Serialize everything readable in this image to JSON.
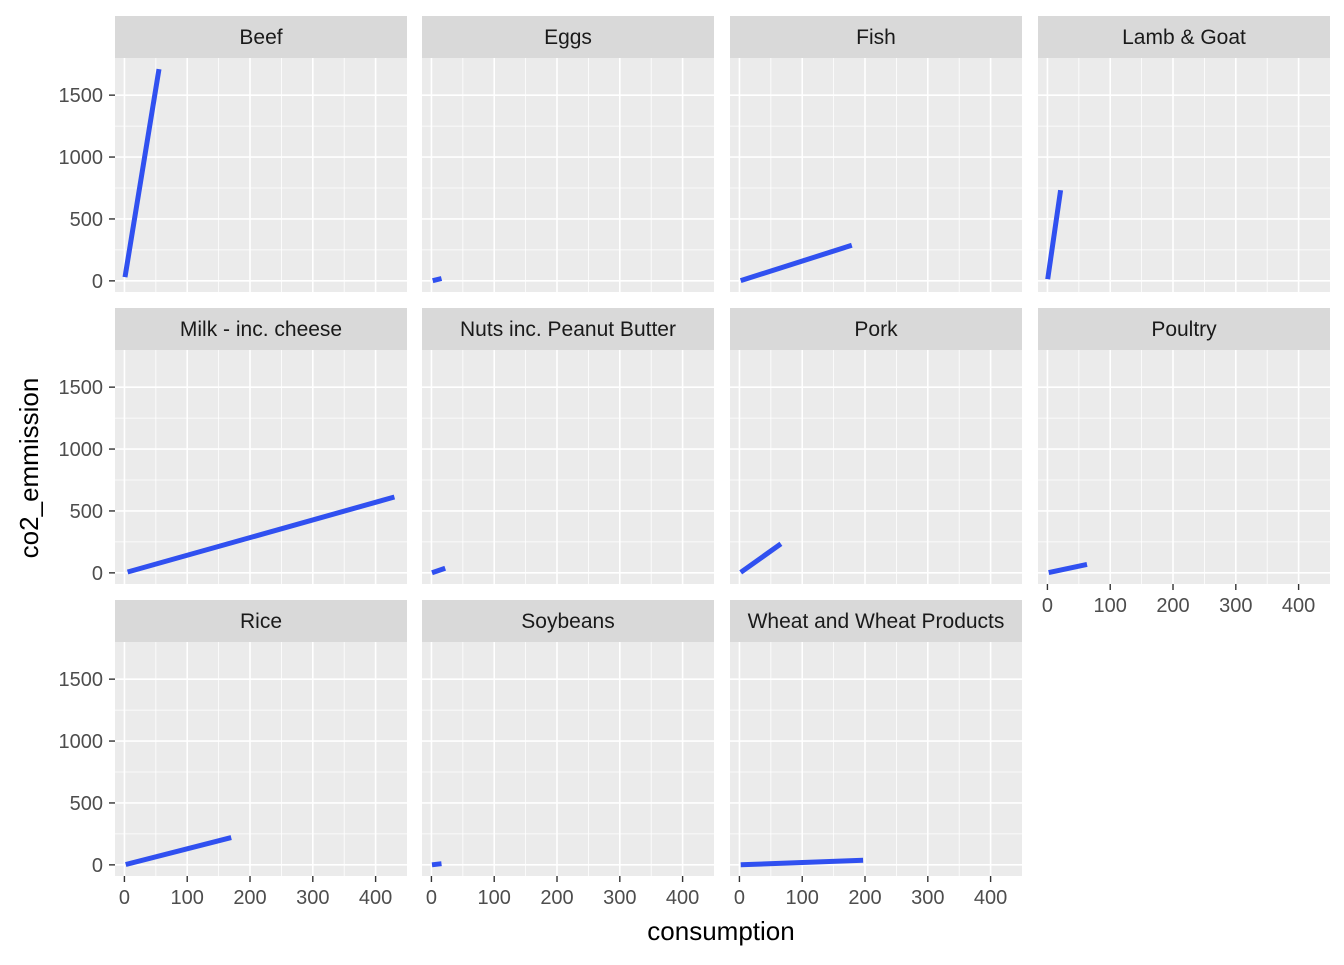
{
  "chart_data": {
    "type": "line",
    "xlabel": "consumption",
    "ylabel": "co2_emmission",
    "xlim": [
      -15,
      450
    ],
    "ylim": [
      -90,
      1800
    ],
    "x_ticks": [
      0,
      100,
      200,
      300,
      400
    ],
    "x_tick_labels": [
      "0",
      "100",
      "200",
      "300",
      "400"
    ],
    "y_ticks": [
      0,
      500,
      1000,
      1500
    ],
    "y_tick_labels": [
      "0",
      "500",
      "1000",
      "1500"
    ],
    "grid": true,
    "line_color": "#3050f0",
    "facets": [
      {
        "name": "Beef",
        "x": [
          1,
          55
        ],
        "y": [
          30,
          1710
        ]
      },
      {
        "name": "Eggs",
        "x": [
          2,
          16
        ],
        "y": [
          1,
          19
        ]
      },
      {
        "name": "Fish",
        "x": [
          2,
          179
        ],
        "y": [
          2,
          287
        ]
      },
      {
        "name": "Lamb & Goat",
        "x": [
          0.5,
          21
        ],
        "y": [
          13,
          732
        ]
      },
      {
        "name": "Milk - inc. cheese",
        "x": [
          5,
          430
        ],
        "y": [
          7,
          613
        ]
      },
      {
        "name": "Nuts inc. Peanut Butter",
        "x": [
          1,
          22
        ],
        "y": [
          1,
          38
        ]
      },
      {
        "name": "Pork",
        "x": [
          2,
          66
        ],
        "y": [
          4,
          235
        ]
      },
      {
        "name": "Poultry",
        "x": [
          2,
          63
        ],
        "y": [
          2,
          68
        ]
      },
      {
        "name": "Rice",
        "x": [
          2,
          170
        ],
        "y": [
          3,
          220
        ]
      },
      {
        "name": "Soybeans",
        "x": [
          1,
          16
        ],
        "y": [
          0.5,
          9
        ]
      },
      {
        "name": "Wheat and Wheat Products",
        "x": [
          2,
          197
        ],
        "y": [
          0.5,
          38
        ]
      }
    ]
  }
}
